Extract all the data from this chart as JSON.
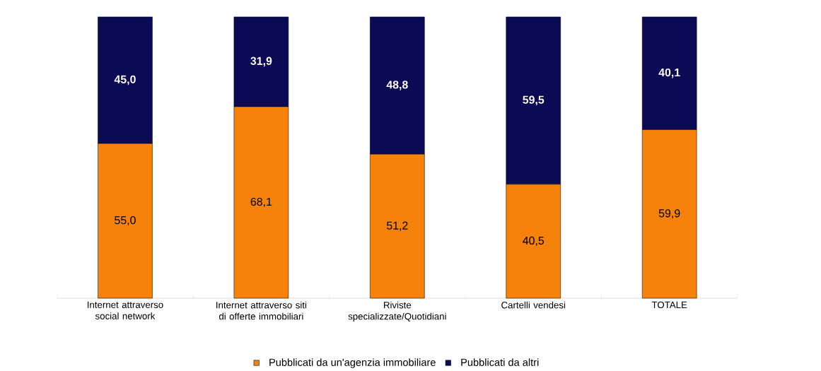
{
  "chart_data": {
    "type": "bar",
    "stacked": true,
    "categories": [
      "Internet attraverso social network",
      "Internet attraverso siti di offerte immobiliari",
      "Riviste specializzate/Quotidiani",
      "Cartelli vendesi",
      "TOTALE"
    ],
    "series": [
      {
        "name": "Pubblicati da un'agenzia immobiliare",
        "color": "#f5820a",
        "values": [
          55.0,
          68.1,
          51.2,
          40.5,
          59.9
        ],
        "value_labels": [
          "55,0",
          "68,1",
          "51,2",
          "40,5",
          "59,9"
        ]
      },
      {
        "name": "Pubblicati da altri",
        "color": "#0b0b55",
        "values": [
          45.0,
          31.9,
          48.8,
          59.5,
          40.1
        ],
        "value_labels": [
          "45,0",
          "31,9",
          "48,8",
          "59,5",
          "40,1"
        ]
      }
    ],
    "legend": "bottom"
  }
}
